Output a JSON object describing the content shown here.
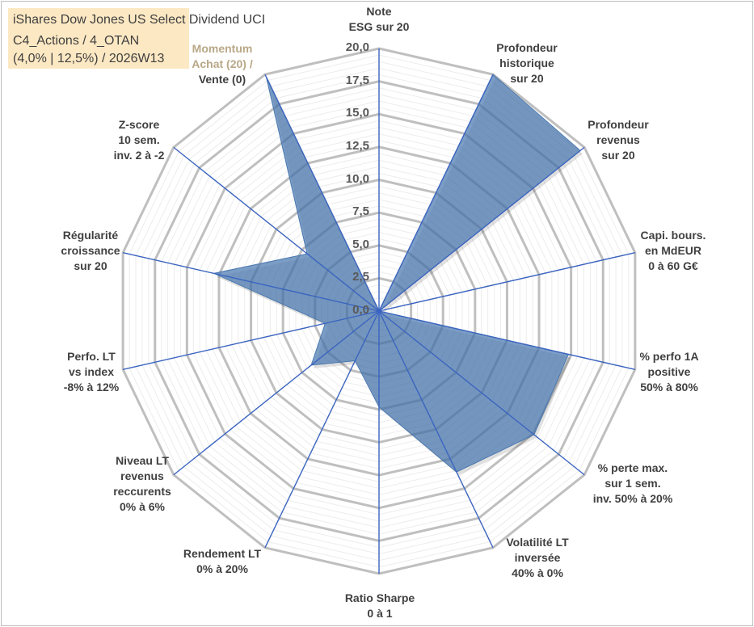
{
  "title_box": {
    "line1": "iShares Dow Jones US Select Dividend UCI",
    "line2": "C4_Actions / 4_OTAN",
    "line3": "(4,0% | 12,5%) / 2026W13"
  },
  "colors": {
    "fill": "#4a78b0",
    "axis": "#3b64c0",
    "grid_major": "#bfbfbf",
    "grid_minor": "#ececec",
    "title_bg": "#fce8c3"
  },
  "chart_data": {
    "type": "radar",
    "rmin": 0,
    "rmax": 20,
    "major_step": 2.5,
    "minor_step": 0.5,
    "tick_labels": [
      "0,0",
      "2,5",
      "5,0",
      "7,5",
      "10,0",
      "12,5",
      "15,0",
      "17,5",
      "20,0"
    ],
    "axes": [
      {
        "lines": [
          "Note",
          "ESG sur 20"
        ],
        "value": 0
      },
      {
        "lines": [
          "Profondeur",
          "historique",
          "sur 20"
        ],
        "value": 20
      },
      {
        "lines": [
          "Profondeur",
          "revenus",
          "sur 20"
        ],
        "value": 19.6
      },
      {
        "lines": [
          "Capi. bours.",
          "en MdEUR",
          "0 à 60 G€"
        ],
        "value": 0
      },
      {
        "lines": [
          "% perfo 1A",
          "positive",
          "50% à 80%"
        ],
        "value": 14.8
      },
      {
        "lines": [
          "% perte max.",
          "sur 1 sem.",
          "inv. 50% à 20%"
        ],
        "value": 15.1
      },
      {
        "lines": [
          "Volatilité LT",
          "inversée",
          "40% à 0%"
        ],
        "value": 13.6
      },
      {
        "lines": [
          "Ratio Sharpe",
          "0 à 1"
        ],
        "value": 7.3
      },
      {
        "lines": [
          "Rendement LT",
          "0% à 20%"
        ],
        "value": 4.2
      },
      {
        "lines": [
          "Niveau LT",
          "revenus",
          "reccurents",
          "0% à 6%"
        ],
        "value": 6.6
      },
      {
        "lines": [
          "Perfo. LT",
          "vs index",
          "-8% à 12%"
        ],
        "value": 4.2
      },
      {
        "lines": [
          "Régularité",
          "croissance",
          "sur 20"
        ],
        "value": 12.9
      },
      {
        "lines": [
          "Z-score",
          "10 sem.",
          "inv. 2 à -2"
        ],
        "value": 7.0
      },
      {
        "lines": [
          "Momentum",
          "Achat (20) /",
          "Vente (0)"
        ],
        "value": 19.8
      }
    ]
  }
}
